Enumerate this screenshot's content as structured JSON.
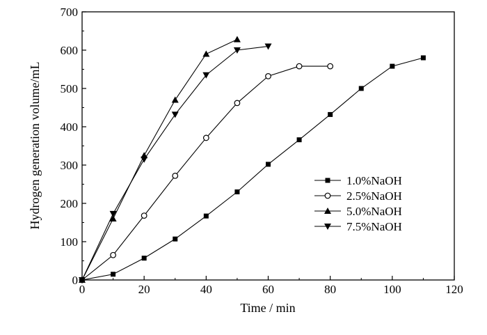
{
  "chart_data": {
    "type": "line",
    "xlabel": "Time / min",
    "ylabel": "Hydrogen generation volume/mL",
    "xlim": [
      0,
      120
    ],
    "ylim": [
      0,
      700
    ],
    "xticks": [
      0,
      20,
      40,
      60,
      80,
      100,
      120
    ],
    "yticks": [
      100,
      200,
      300,
      400,
      500,
      600,
      700
    ],
    "y_origin_label": "0",
    "grid": false,
    "legend_position": "center-right",
    "series": [
      {
        "name": "1.0%NaOH",
        "marker": "square-filled",
        "x": [
          0,
          10,
          20,
          30,
          40,
          50,
          60,
          70,
          80,
          90,
          100,
          110
        ],
        "y": [
          0,
          15,
          57,
          107,
          167,
          230,
          302,
          366,
          432,
          500,
          558,
          580
        ]
      },
      {
        "name": "2.5%NaOH",
        "marker": "circle-open",
        "x": [
          0,
          10,
          20,
          30,
          40,
          50,
          60,
          70,
          80
        ],
        "y": [
          0,
          65,
          168,
          272,
          371,
          462,
          532,
          558,
          558
        ]
      },
      {
        "name": "5.0%NaOH",
        "marker": "triangle-up-filled",
        "x": [
          0,
          10,
          20,
          30,
          40,
          50
        ],
        "y": [
          0,
          160,
          325,
          470,
          590,
          628
        ]
      },
      {
        "name": "7.5%NaOH",
        "marker": "triangle-down-filled",
        "x": [
          0,
          10,
          20,
          30,
          40,
          50,
          60
        ],
        "y": [
          0,
          173,
          315,
          432,
          535,
          600,
          610
        ]
      }
    ]
  }
}
